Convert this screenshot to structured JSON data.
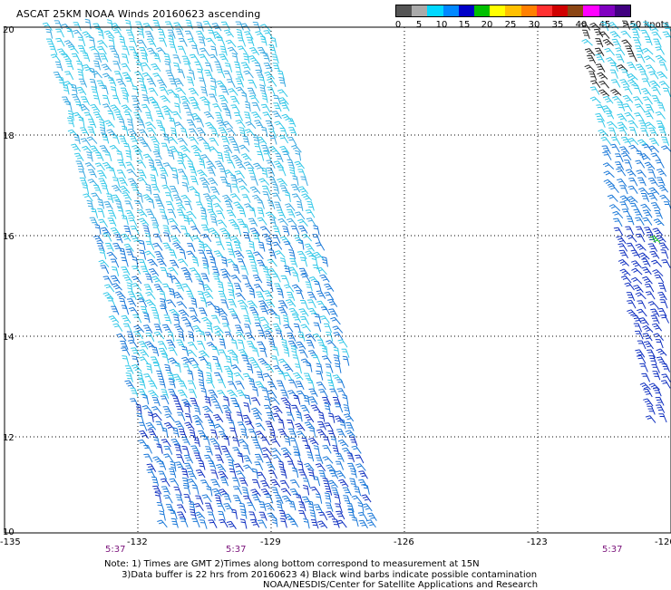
{
  "title": "ASCAT 25KM NOAA Winds 20160623 ascending",
  "colorbar": {
    "colors": [
      "#555555",
      "#aaaaaa",
      "#00d8ff",
      "#0088ff",
      "#0000c8",
      "#00c000",
      "#ffff00",
      "#ffc000",
      "#ff8000",
      "#ff3030",
      "#d00000",
      "#8b4513",
      "#ff00ff",
      "#8000c0",
      "#400080"
    ],
    "labels": [
      "0",
      "5",
      "10",
      "15",
      "20",
      "25",
      "30",
      "35",
      "40",
      "45",
      ">50 knots"
    ]
  },
  "axes": {
    "lat_ticks": [
      "20",
      "18",
      "16",
      "14",
      "12",
      "10"
    ],
    "lon_ticks": [
      "-135",
      "-132",
      "-129",
      "-126",
      "-123",
      "-120"
    ]
  },
  "times": [
    "5:37",
    "5:37",
    "5:37"
  ],
  "note_lines": [
    "Note: 1) Times are GMT 2)Times along bottom correspond to measurement at 15N",
    "      3)Data buffer is 22 hrs from 20160623 4) Black wind barbs indicate possible contamination"
  ],
  "credit": "NOAA/NESDIS/Center for Satellite Applications and Research",
  "colors": {
    "swath_light": "#33c8e8",
    "swath_mid": "#1a78d8",
    "swath_dark": "#1030c0",
    "grid": "#000000"
  }
}
